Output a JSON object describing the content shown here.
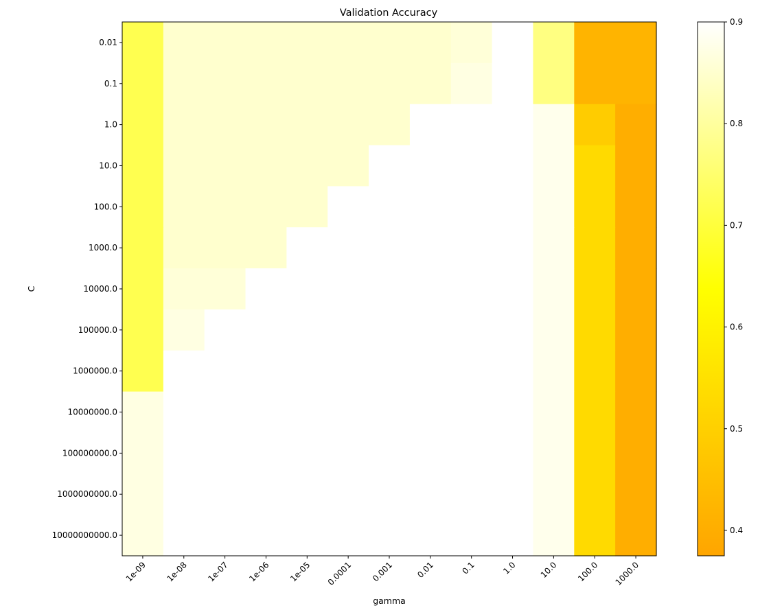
{
  "chart_data": {
    "type": "heatmap",
    "title": "Validation Accuracy",
    "xlabel": "gamma",
    "ylabel": "C",
    "x_categories": [
      "1e-09",
      "1e-08",
      "1e-07",
      "1e-06",
      "1e-05",
      "0.0001",
      "0.001",
      "0.01",
      "0.1",
      "1.0",
      "10.0",
      "100.0",
      "1000.0"
    ],
    "y_categories": [
      "0.01",
      "0.1",
      "1.0",
      "10.0",
      "100.0",
      "1000.0",
      "10000.0",
      "100000.0",
      "1000000.0",
      "10000000.0",
      "100000000.0",
      "1000000000.0",
      "10000000000.0"
    ],
    "values": [
      [
        0.72,
        0.85,
        0.85,
        0.85,
        0.85,
        0.85,
        0.85,
        0.85,
        0.86,
        0.9,
        0.77,
        0.42,
        0.42
      ],
      [
        0.72,
        0.85,
        0.85,
        0.85,
        0.85,
        0.85,
        0.85,
        0.85,
        0.87,
        0.9,
        0.77,
        0.42,
        0.42
      ],
      [
        0.72,
        0.85,
        0.85,
        0.85,
        0.85,
        0.85,
        0.85,
        0.9,
        0.9,
        0.9,
        0.88,
        0.49,
        0.4
      ],
      [
        0.72,
        0.85,
        0.85,
        0.85,
        0.85,
        0.85,
        0.9,
        0.9,
        0.9,
        0.9,
        0.88,
        0.53,
        0.4
      ],
      [
        0.72,
        0.85,
        0.85,
        0.85,
        0.85,
        0.9,
        0.9,
        0.9,
        0.9,
        0.9,
        0.88,
        0.53,
        0.4
      ],
      [
        0.72,
        0.85,
        0.85,
        0.85,
        0.9,
        0.9,
        0.9,
        0.9,
        0.9,
        0.9,
        0.88,
        0.53,
        0.4
      ],
      [
        0.72,
        0.86,
        0.86,
        0.9,
        0.9,
        0.9,
        0.9,
        0.9,
        0.9,
        0.9,
        0.88,
        0.53,
        0.4
      ],
      [
        0.72,
        0.87,
        0.9,
        0.9,
        0.9,
        0.9,
        0.9,
        0.9,
        0.9,
        0.9,
        0.88,
        0.53,
        0.4
      ],
      [
        0.72,
        0.9,
        0.9,
        0.9,
        0.9,
        0.9,
        0.9,
        0.9,
        0.9,
        0.9,
        0.88,
        0.53,
        0.4
      ],
      [
        0.87,
        0.9,
        0.9,
        0.9,
        0.9,
        0.9,
        0.9,
        0.9,
        0.9,
        0.9,
        0.88,
        0.53,
        0.4
      ],
      [
        0.87,
        0.9,
        0.9,
        0.9,
        0.9,
        0.9,
        0.9,
        0.9,
        0.9,
        0.9,
        0.88,
        0.53,
        0.4
      ],
      [
        0.87,
        0.9,
        0.9,
        0.9,
        0.9,
        0.9,
        0.9,
        0.9,
        0.9,
        0.9,
        0.88,
        0.53,
        0.4
      ],
      [
        0.87,
        0.9,
        0.9,
        0.9,
        0.9,
        0.9,
        0.9,
        0.9,
        0.9,
        0.9,
        0.88,
        0.53,
        0.4
      ]
    ],
    "colorbar": {
      "min": 0.375,
      "max": 0.9,
      "ticks": [
        "0.4",
        "0.5",
        "0.6",
        "0.7",
        "0.8",
        "0.9"
      ],
      "colors": [
        "#ffa500",
        "#ffff00",
        "#ffffff"
      ]
    }
  }
}
